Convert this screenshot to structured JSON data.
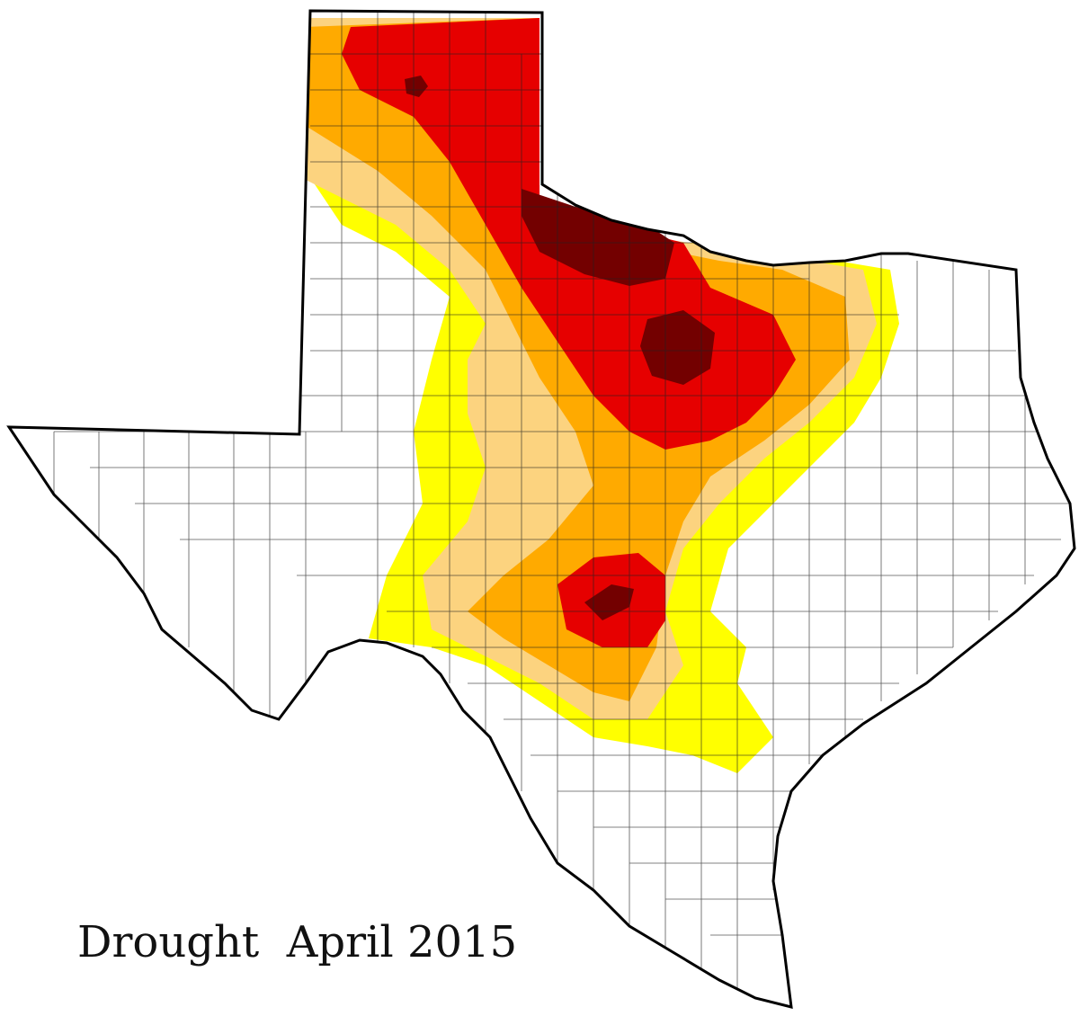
{
  "title": "Drought  April 2015"
}
